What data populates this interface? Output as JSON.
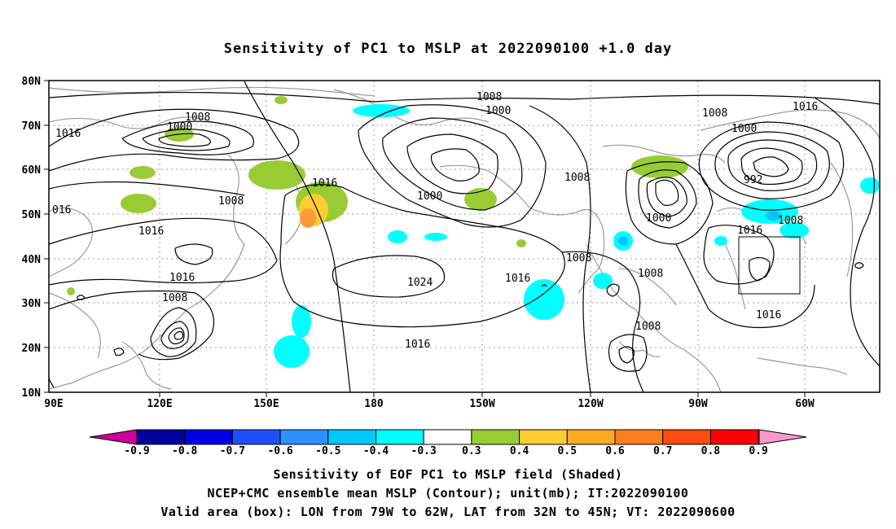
{
  "title": "Sensitivity of PC1 to MSLP at 2022090100 +1.0 day",
  "axes": {
    "lat_ticks": [
      "10N",
      "20N",
      "30N",
      "40N",
      "50N",
      "60N",
      "70N",
      "80N"
    ],
    "lon_ticks": [
      "90E",
      "120E",
      "150E",
      "180",
      "150W",
      "120W",
      "90W",
      "60W"
    ]
  },
  "colorbar": {
    "labels": [
      "-0.9",
      "-0.8",
      "-0.7",
      "-0.6",
      "-0.5",
      "-0.4",
      "-0.3",
      "0.3",
      "0.4",
      "0.5",
      "0.6",
      "0.7",
      "0.8",
      "0.9"
    ],
    "colors": [
      "#00009c",
      "#0000e6",
      "#1e50ff",
      "#2e90ff",
      "#00c8ff",
      "#00ffff",
      "#ffffff",
      "#99cc33",
      "#ffcc33",
      "#ffaa22",
      "#ff7f20",
      "#ff4c10",
      "#ff0000"
    ],
    "low_end_color": "#cc0099",
    "high_end_color": "#ff99cc"
  },
  "contour_labels": [
    "1008",
    "1000",
    "1016",
    "1008",
    "1000",
    "1008",
    "1016",
    "1000",
    "1008",
    "016",
    "1016",
    "1016",
    "1008",
    "1024",
    "1008",
    "1016",
    "1016",
    "1008",
    "1008",
    "1000",
    "1008",
    "1016",
    "1000",
    "992",
    "1008",
    "1016",
    "1016",
    "1008"
  ],
  "captions": {
    "line1": "Sensitivity of EOF PC1 to MSLP field (Shaded)",
    "line2": "NCEP+CMC ensemble mean MSLP (Contour); unit(mb); IT:2022090100",
    "line3": "Valid area (box): LON from 79W to 62W, LAT from 32N to 45N; VT: 2022090600"
  }
}
